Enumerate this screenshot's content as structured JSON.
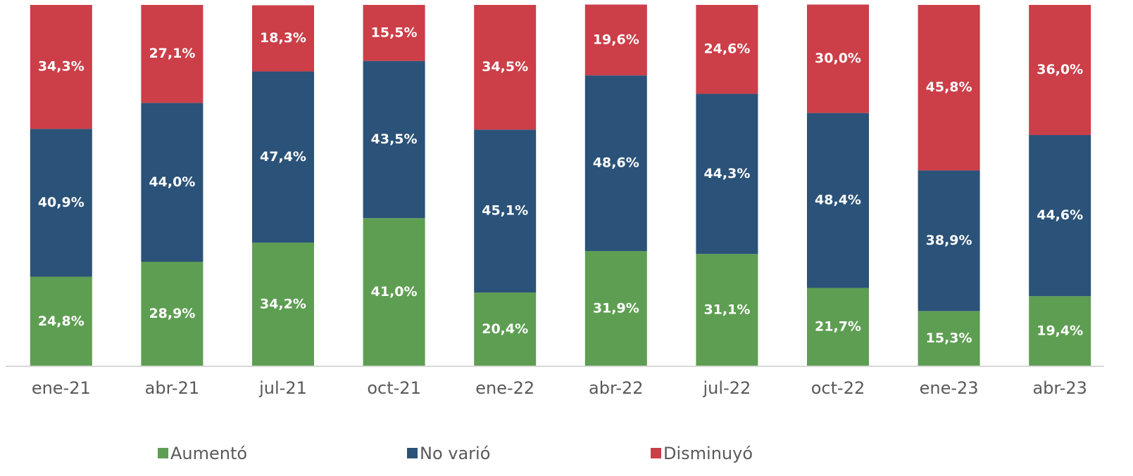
{
  "chart_data": {
    "type": "stacked_bar",
    "categories": [
      "ene-21",
      "abr-21",
      "jul-21",
      "oct-21",
      "ene-22",
      "abr-22",
      "jul-22",
      "oct-22",
      "ene-23",
      "abr-23"
    ],
    "series": [
      {
        "name": "Aumentó",
        "color": "#5e9e52",
        "values": [
          24.8,
          28.9,
          34.2,
          41.0,
          20.4,
          31.9,
          31.1,
          21.7,
          15.3,
          19.4
        ],
        "value_labels": [
          "24,8%",
          "28,9%",
          "34,2%",
          "41,0%",
          "20,4%",
          "31,9%",
          "31,1%",
          "21,7%",
          "15,3%",
          "19,4%"
        ]
      },
      {
        "name": "No varió",
        "color": "#2b5278",
        "values": [
          40.9,
          44.0,
          47.4,
          43.5,
          45.1,
          48.6,
          44.3,
          48.4,
          38.9,
          44.6
        ],
        "value_labels": [
          "40,9%",
          "44,0%",
          "47,4%",
          "43,5%",
          "45,1%",
          "48,6%",
          "44,3%",
          "48,4%",
          "38,9%",
          "44,6%"
        ]
      },
      {
        "name": "Disminuyó",
        "color": "#cc3e48",
        "values": [
          34.3,
          27.1,
          18.3,
          15.5,
          34.5,
          19.6,
          24.6,
          30.0,
          45.8,
          36.0
        ],
        "value_labels": [
          "34,3%",
          "27,1%",
          "18,3%",
          "15,5%",
          "34,5%",
          "19,6%",
          "24,6%",
          "30,0%",
          "45,8%",
          "36,0%"
        ]
      }
    ],
    "ylim": [
      0,
      100
    ],
    "legend": "bottom"
  }
}
